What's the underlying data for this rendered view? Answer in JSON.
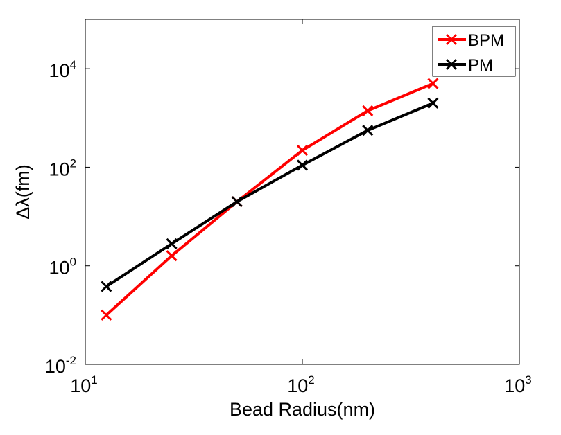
{
  "chart_data": {
    "type": "line",
    "xscale": "log",
    "yscale": "log",
    "x": [
      12.5,
      25,
      50,
      100,
      200,
      400
    ],
    "series": [
      {
        "name": "BPM",
        "color": "#ff0000",
        "marker": "x",
        "values": [
          0.1,
          1.6,
          20,
          220,
          1400,
          5000
        ]
      },
      {
        "name": "PM",
        "color": "#000000",
        "marker": "x",
        "values": [
          0.38,
          2.8,
          20,
          110,
          560,
          2000
        ]
      }
    ],
    "xlim": [
      10,
      1000
    ],
    "ylim": [
      0.01,
      100000
    ],
    "xticks": [
      {
        "base": "10",
        "exp": "1"
      },
      {
        "base": "10",
        "exp": "2"
      },
      {
        "base": "10",
        "exp": "3"
      }
    ],
    "yticks": [
      {
        "base": "10",
        "exp": "-2"
      },
      {
        "base": "10",
        "exp": "0"
      },
      {
        "base": "10",
        "exp": "2"
      },
      {
        "base": "10",
        "exp": "4"
      }
    ],
    "xlabel": "Bead Radius(nm)",
    "ylabel": "Δλ(fm)",
    "legend": {
      "position": "top-right"
    }
  }
}
